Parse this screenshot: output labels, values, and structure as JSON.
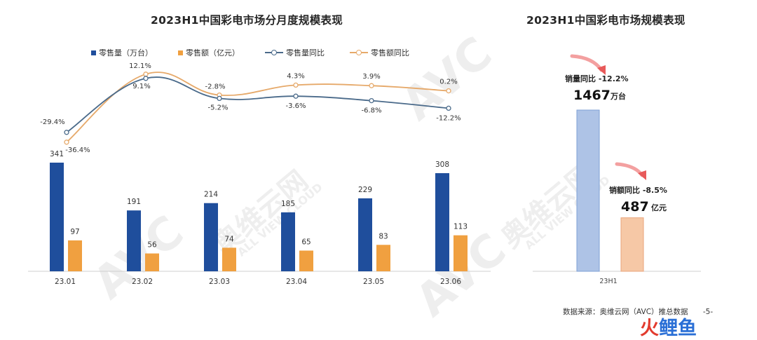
{
  "left_title": "2023H1中国彩电市场分月度规模表现",
  "right_title": "2023H1中国彩电市场规模表现",
  "legend": {
    "sales_volume": "零售量（万台）",
    "sales_value": "零售额（亿元）",
    "volume_yoy": "零售量同比",
    "value_yoy": "零售额同比"
  },
  "colors": {
    "volume": "#1f4e9c",
    "value": "#f0a040",
    "volume_line": "#4a6a8a",
    "value_line": "#e6a96a",
    "total_volume_bar": "#aec3e6",
    "total_value_bar": "#f6c8a6",
    "arrow": "#e85a5a"
  },
  "chart_data": [
    {
      "type": "bar",
      "title": "2023H1中国彩电市场分月度规模表现",
      "categories": [
        "23.01",
        "23.02",
        "23.03",
        "23.04",
        "23.05",
        "23.06"
      ],
      "series": [
        {
          "name": "零售量（万台）",
          "values": [
            341,
            191,
            214,
            185,
            229,
            308
          ],
          "labels": [
            "341",
            "191",
            "214",
            "185",
            "229",
            "308"
          ]
        },
        {
          "name": "零售额（亿元）",
          "values": [
            97,
            56,
            74,
            65,
            83,
            113
          ],
          "labels": [
            "97",
            "56",
            "74",
            "65",
            "83",
            "113"
          ]
        },
        {
          "name": "零售量同比",
          "type": "line",
          "values": [
            -29.4,
            9.1,
            -5.2,
            -3.6,
            -6.8,
            -12.2
          ],
          "labels": [
            "-29.4%",
            "9.1%",
            "-5.2%",
            "-3.6%",
            "-6.8%",
            "-12.2%"
          ]
        },
        {
          "name": "零售额同比",
          "type": "line",
          "values": [
            -36.4,
            12.1,
            -2.8,
            4.3,
            3.9,
            0.2
          ],
          "labels": [
            "-36.4%",
            "12.1%",
            "-2.8%",
            "4.3%",
            "3.9%",
            "0.2%"
          ]
        }
      ],
      "legend_position": "top"
    },
    {
      "type": "bar",
      "title": "2023H1中国彩电市场规模表现",
      "categories": [
        "23H1"
      ],
      "series": [
        {
          "name": "零售量（万台）",
          "values": [
            1467
          ]
        },
        {
          "name": "零售额（亿元）",
          "values": [
            487
          ]
        }
      ],
      "annotations": {
        "volume_yoy_label": "销量同比 -12.2%",
        "volume_value": "1467",
        "volume_unit": "万台",
        "value_yoy_label": "销额同比 -8.5%",
        "value_value": "487",
        "value_unit": "亿元"
      }
    }
  ],
  "source_text": "数据来源：奥维云网（AVC）推总数据",
  "page_number": "-5-",
  "watermarks": [
    "AVC",
    "奥维云网",
    "ALL VIEW CLOUD"
  ],
  "logo": {
    "part1": "火",
    "part2": "鲤鱼"
  }
}
